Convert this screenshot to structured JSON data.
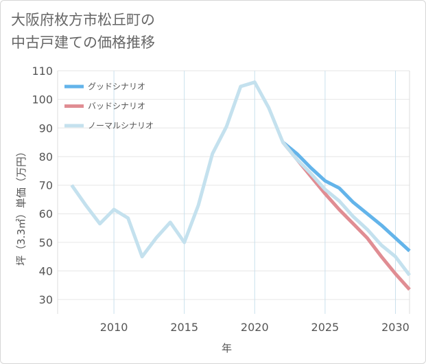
{
  "chart_data": {
    "type": "line",
    "title": "大阪府枚方市松丘町の中古戸建ての価格推移",
    "title_lines": [
      "大阪府枚方市松丘町の",
      "中古戸建ての価格推移"
    ],
    "xlabel": "年",
    "ylabel": "坪（3.3㎡）単価（万円）",
    "xlim": [
      2006,
      2031
    ],
    "ylim": [
      25,
      110
    ],
    "xticks": [
      2010,
      2015,
      2020,
      2025,
      2030
    ],
    "yticks": [
      30,
      40,
      50,
      60,
      70,
      80,
      90,
      100,
      110
    ],
    "grid": true,
    "legend_position": "top-left",
    "series": [
      {
        "name": "グッドシナリオ",
        "color": "#63b4ea",
        "x": [
          2022,
          2023,
          2024,
          2025,
          2026,
          2027,
          2028,
          2029,
          2030,
          2031
        ],
        "y": [
          85,
          81,
          76,
          71.5,
          69,
          64,
          60,
          56,
          51.5,
          47
        ]
      },
      {
        "name": "バッドシナリオ",
        "color": "#e08d93",
        "x": [
          2022,
          2023,
          2024,
          2025,
          2026,
          2027,
          2028,
          2029,
          2030,
          2031
        ],
        "y": [
          85,
          79,
          73,
          67,
          61.5,
          56.5,
          51.5,
          45,
          39,
          33.5
        ]
      },
      {
        "name": "ノーマルシナリオ",
        "color": "#c4e1ee",
        "x": [
          2007,
          2008,
          2009,
          2010,
          2011,
          2012,
          2013,
          2014,
          2015,
          2016,
          2017,
          2018,
          2019,
          2020,
          2021,
          2022,
          2023,
          2024,
          2025,
          2026,
          2027,
          2028,
          2029,
          2030,
          2031
        ],
        "y": [
          70,
          63,
          56.5,
          61.5,
          58.5,
          45,
          51.5,
          57,
          50,
          63,
          81,
          90.5,
          104.5,
          106,
          97,
          85,
          79,
          74,
          68.5,
          64.5,
          59,
          54.5,
          49,
          45,
          38.5
        ]
      }
    ]
  }
}
